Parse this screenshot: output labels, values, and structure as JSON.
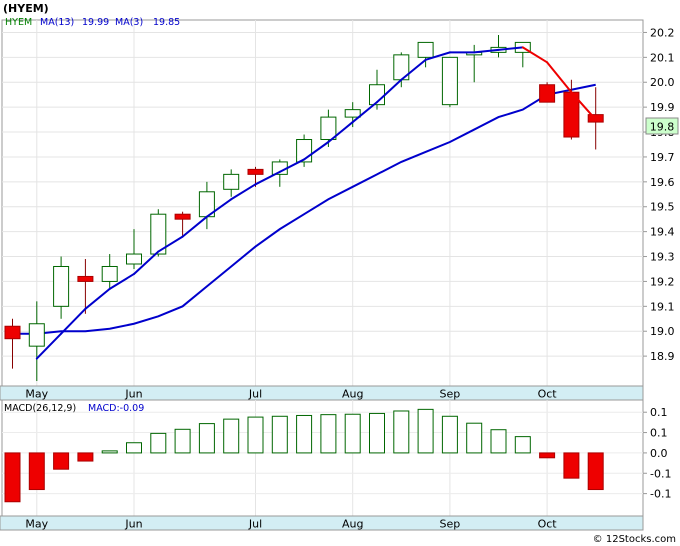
{
  "chart_data": [
    {
      "type": "candlestick",
      "title": "(HYEM)",
      "legend": [
        {
          "label": "HYEM",
          "color": "#008000"
        },
        {
          "label": "MA(13)",
          "value": "19.99",
          "color": "#0000cc"
        },
        {
          "label": "MA(3)",
          "value": "19.85",
          "color": "#0000cc"
        }
      ],
      "ylim": [
        18.78,
        20.25
      ],
      "yticks": [
        "18.9",
        "19.0",
        "19.1",
        "19.2",
        "19.3",
        "19.4",
        "19.5",
        "19.6",
        "19.7",
        "19.8",
        "19.9",
        "20.0",
        "20.1",
        "20.2"
      ],
      "last_price": "19.8",
      "months": [
        {
          "label": "May",
          "week": 1
        },
        {
          "label": "Jun",
          "week": 5
        },
        {
          "label": "Jul",
          "week": 10
        },
        {
          "label": "Aug",
          "week": 14
        },
        {
          "label": "Sep",
          "week": 18
        },
        {
          "label": "Oct",
          "week": 22
        }
      ],
      "candles": [
        {
          "o": 19.02,
          "h": 19.05,
          "l": 18.85,
          "c": 18.97
        },
        {
          "o": 18.94,
          "h": 19.12,
          "l": 18.8,
          "c": 19.03
        },
        {
          "o": 19.1,
          "h": 19.3,
          "l": 19.05,
          "c": 19.26
        },
        {
          "o": 19.22,
          "h": 19.29,
          "l": 19.07,
          "c": 19.2
        },
        {
          "o": 19.2,
          "h": 19.31,
          "l": 19.17,
          "c": 19.26
        },
        {
          "o": 19.27,
          "h": 19.41,
          "l": 19.25,
          "c": 19.31
        },
        {
          "o": 19.31,
          "h": 19.49,
          "l": 19.3,
          "c": 19.47
        },
        {
          "o": 19.47,
          "h": 19.48,
          "l": 19.38,
          "c": 19.45
        },
        {
          "o": 19.46,
          "h": 19.6,
          "l": 19.41,
          "c": 19.56
        },
        {
          "o": 19.57,
          "h": 19.65,
          "l": 19.54,
          "c": 19.63
        },
        {
          "o": 19.65,
          "h": 19.66,
          "l": 19.58,
          "c": 19.63
        },
        {
          "o": 19.63,
          "h": 19.69,
          "l": 19.58,
          "c": 19.68
        },
        {
          "o": 19.68,
          "h": 19.79,
          "l": 19.66,
          "c": 19.77
        },
        {
          "o": 19.77,
          "h": 19.89,
          "l": 19.74,
          "c": 19.86
        },
        {
          "o": 19.86,
          "h": 19.92,
          "l": 19.82,
          "c": 19.89
        },
        {
          "o": 19.91,
          "h": 20.05,
          "l": 19.89,
          "c": 19.99
        },
        {
          "o": 20.01,
          "h": 20.12,
          "l": 19.98,
          "c": 20.11
        },
        {
          "o": 20.1,
          "h": 20.16,
          "l": 20.06,
          "c": 20.16
        },
        {
          "o": 19.91,
          "h": 20.09,
          "l": 19.9,
          "c": 20.1
        },
        {
          "o": 20.11,
          "h": 20.15,
          "l": 20.0,
          "c": 20.12
        },
        {
          "o": 20.12,
          "h": 20.19,
          "l": 20.1,
          "c": 20.14
        },
        {
          "o": 20.12,
          "h": 20.16,
          "l": 20.06,
          "c": 20.16
        },
        {
          "o": 19.99,
          "h": 20.0,
          "l": 19.92,
          "c": 19.92
        },
        {
          "o": 19.96,
          "h": 20.01,
          "l": 19.77,
          "c": 19.78
        },
        {
          "o": 19.87,
          "h": 19.98,
          "l": 19.73,
          "c": 19.84
        }
      ],
      "ma13": [
        18.99,
        18.99,
        19.0,
        19.0,
        19.01,
        19.03,
        19.06,
        19.1,
        19.18,
        19.26,
        19.34,
        19.41,
        19.47,
        19.53,
        19.58,
        19.63,
        19.68,
        19.72,
        19.76,
        19.81,
        19.86,
        19.89,
        19.95,
        19.97,
        19.99
      ],
      "ma3": [
        null,
        18.89,
        18.99,
        19.09,
        19.17,
        19.23,
        19.32,
        19.38,
        19.46,
        19.53,
        19.59,
        19.64,
        19.69,
        19.76,
        19.84,
        19.92,
        20.01,
        20.09,
        20.12,
        20.12,
        20.13,
        20.14,
        20.08,
        19.96,
        19.85
      ]
    },
    {
      "type": "bar",
      "title": "MACD(26,12,9)",
      "legend_value_label": "MACD:-0.09",
      "ylim": [
        -0.155,
        0.13
      ],
      "yticks": [
        "0.1",
        "0.1",
        "0.0",
        "-0.1",
        "-0.1"
      ],
      "ytick_values": [
        0.1,
        0.05,
        0.0,
        -0.05,
        -0.1
      ],
      "values": [
        -0.12,
        -0.09,
        -0.04,
        -0.02,
        0.005,
        0.025,
        0.048,
        0.058,
        0.072,
        0.083,
        0.088,
        0.09,
        0.092,
        0.094,
        0.095,
        0.097,
        0.103,
        0.107,
        0.09,
        0.073,
        0.057,
        0.04,
        -0.012,
        -0.062,
        -0.09
      ]
    }
  ],
  "footer": {
    "copyright": "© 12Stocks.com"
  }
}
